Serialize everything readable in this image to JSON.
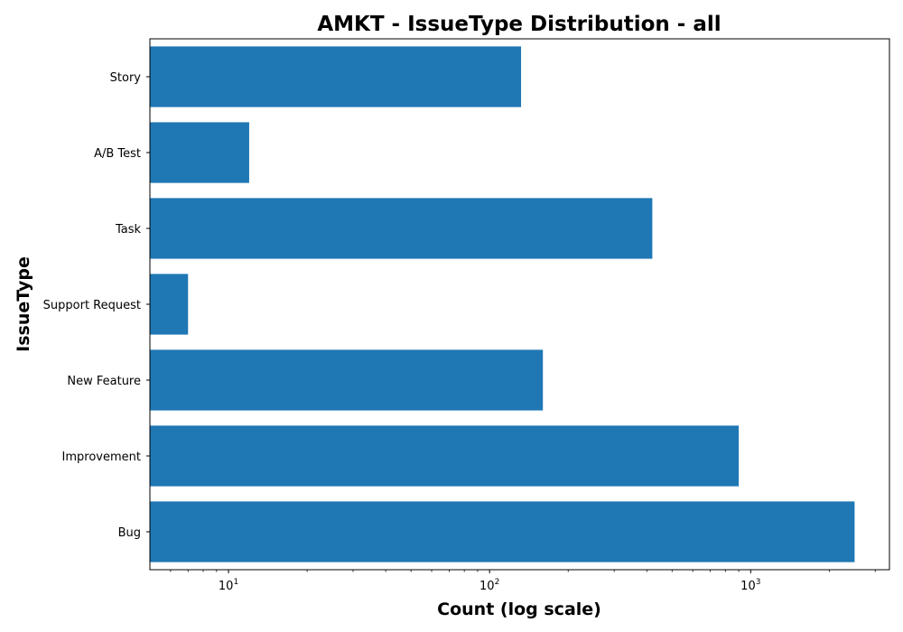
{
  "chart_data": {
    "type": "bar",
    "orientation": "horizontal",
    "title": "AMKT - IssueType Distribution - all",
    "xlabel": "Count (log scale)",
    "ylabel": "IssueType",
    "xscale": "log",
    "xlim": [
      5,
      3400
    ],
    "categories": [
      "Bug",
      "Improvement",
      "New Feature",
      "Support Request",
      "Task",
      "A/B Test",
      "Story"
    ],
    "values": [
      2500,
      900,
      160,
      7,
      420,
      12,
      132
    ],
    "xticks": [
      10,
      100,
      1000
    ],
    "xtick_labels": [
      {
        "base": "10",
        "exp": "1"
      },
      {
        "base": "10",
        "exp": "2"
      },
      {
        "base": "10",
        "exp": "3"
      }
    ],
    "bar_color": "#1f77b4",
    "grid": false,
    "legend": "none"
  }
}
